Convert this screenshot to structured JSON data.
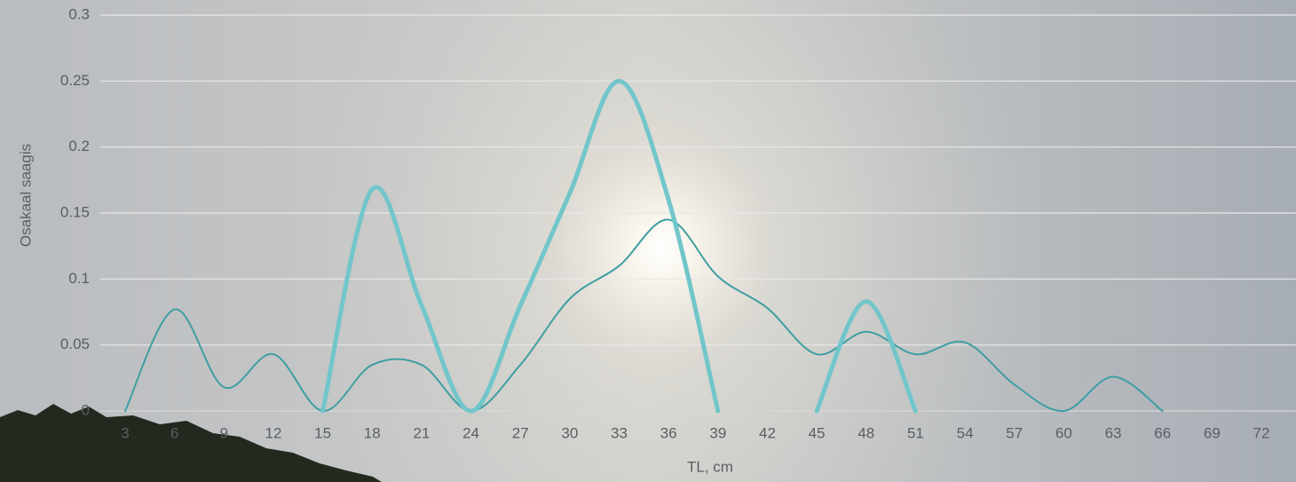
{
  "chart_data": {
    "type": "line",
    "x_label": "TL, cm",
    "y_label": "Osakaal saagis",
    "categories": [
      "3",
      "6",
      "9",
      "12",
      "15",
      "18",
      "21",
      "24",
      "27",
      "30",
      "33",
      "36",
      "39",
      "42",
      "45",
      "48",
      "51",
      "54",
      "57",
      "60",
      "63",
      "66",
      "69",
      "72"
    ],
    "series": [
      {
        "color": "#3f9ea2",
        "width": 2,
        "values": [
          0,
          0.077,
          0.018,
          0.043,
          0,
          0.035,
          0.035,
          0,
          0.035,
          0.085,
          0.11,
          0.145,
          0.102,
          0.078,
          0.043,
          0.06,
          0.043,
          0.052,
          0.02,
          0,
          0.026,
          0,
          null,
          null
        ]
      },
      {
        "color": "#72c6ca",
        "width": 5,
        "values": [
          null,
          null,
          null,
          null,
          0,
          0.168,
          0.08,
          0,
          0.08,
          0.165,
          0.25,
          0.16,
          0,
          null,
          0,
          0.083,
          0,
          null,
          null,
          null,
          null,
          null,
          null,
          null
        ]
      }
    ],
    "ylim": [
      0,
      0.3
    ],
    "yticks": [
      0,
      0.05,
      0.1,
      0.15,
      0.2,
      0.25,
      0.3
    ],
    "grid": true,
    "smooth": true
  }
}
